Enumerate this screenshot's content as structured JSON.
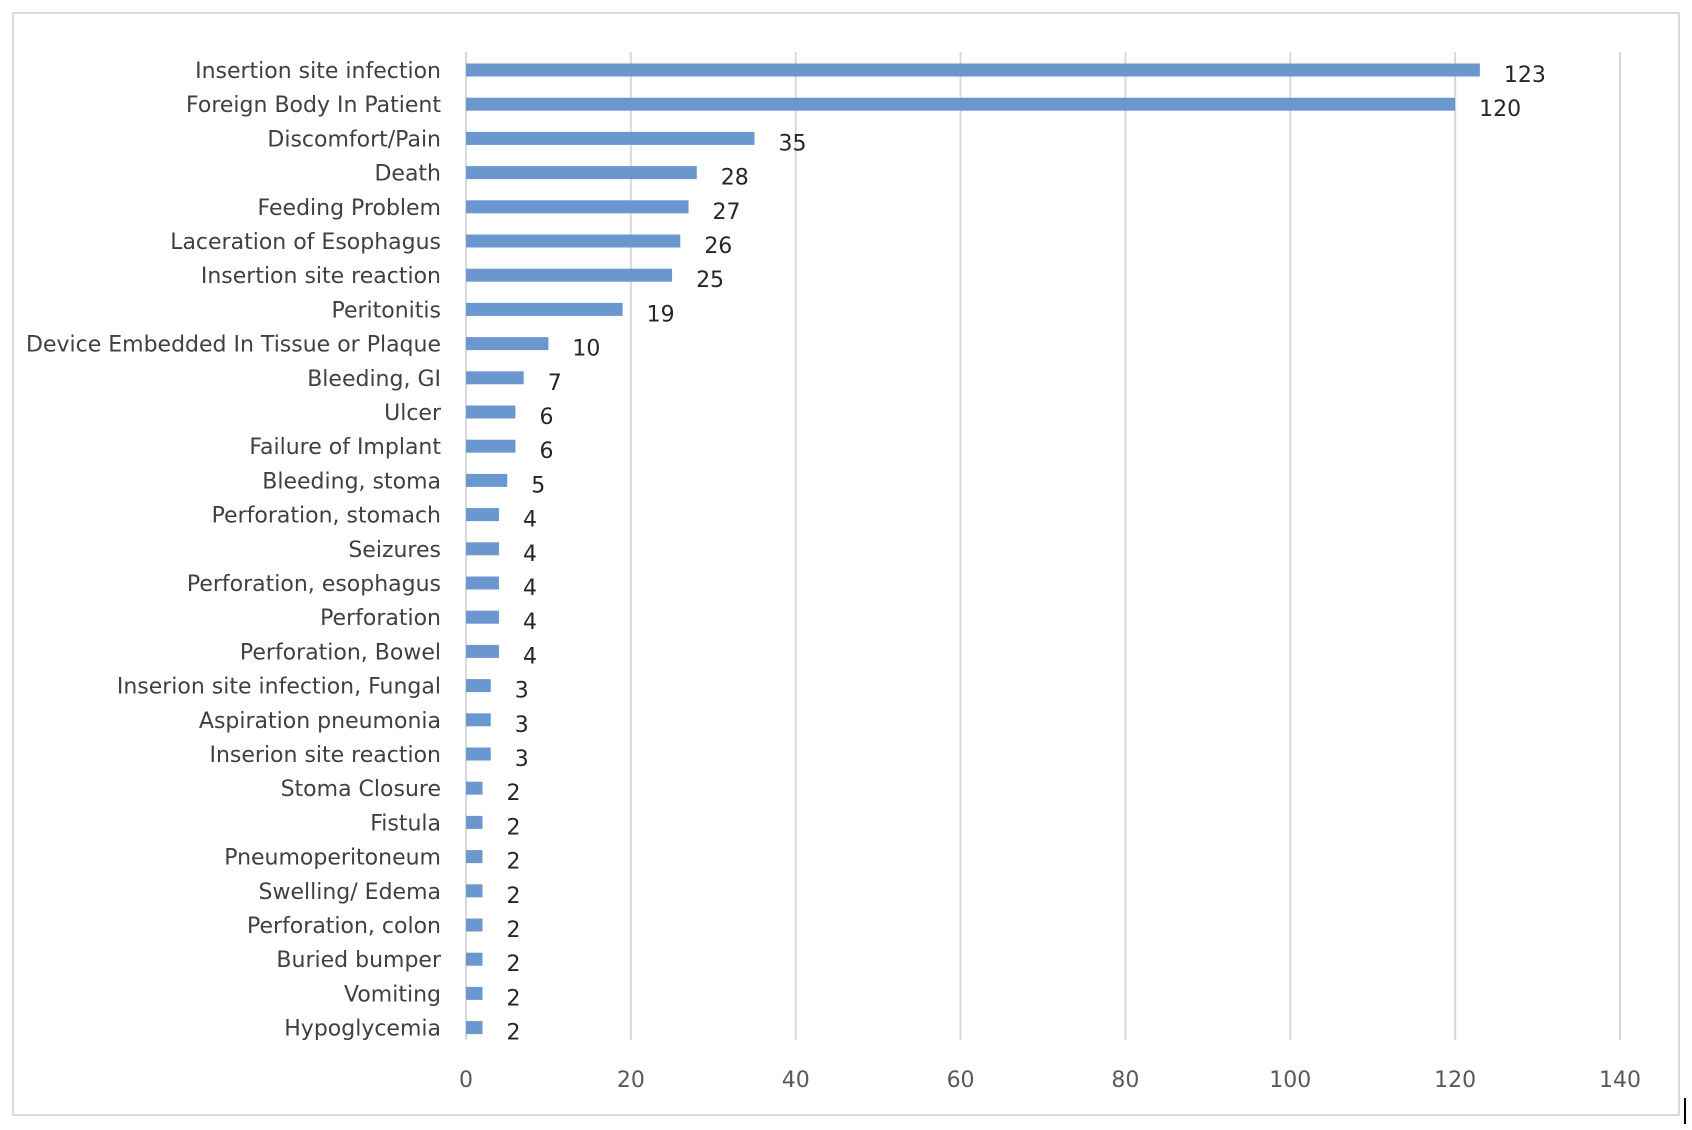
{
  "chart_data": {
    "type": "bar",
    "orientation": "horizontal",
    "title": "",
    "xlabel": "",
    "ylabel": "",
    "categories": [
      "Insertion site infection",
      "Foreign Body In Patient",
      "Discomfort/Pain",
      "Death",
      "Feeding Problem",
      "Laceration of Esophagus",
      "Insertion site reaction",
      "Peritonitis",
      "Device Embedded In Tissue or Plaque",
      "Bleeding, GI",
      "Ulcer",
      "Failure of Implant",
      "Bleeding, stoma",
      "Perforation, stomach",
      "Seizures",
      "Perforation, esophagus",
      "Perforation",
      "Perforation, Bowel",
      "Inserion site infection, Fungal",
      "Aspiration pneumonia",
      "Inserion site reaction",
      "Stoma Closure",
      "Fistula",
      "Pneumoperitoneum",
      "Swelling/ Edema",
      "Perforation, colon",
      "Buried bumper",
      "Vomiting",
      "Hypoglycemia"
    ],
    "values": [
      123,
      120,
      35,
      28,
      27,
      26,
      25,
      19,
      10,
      7,
      6,
      6,
      5,
      4,
      4,
      4,
      4,
      4,
      3,
      3,
      3,
      2,
      2,
      2,
      2,
      2,
      2,
      2,
      2
    ],
    "xlim": [
      0,
      140
    ],
    "xticks": [
      0,
      20,
      40,
      60,
      80,
      100,
      120,
      140
    ],
    "grid": "vertical",
    "data_labels": true,
    "legend": "none",
    "bar_color": "#6b97cf",
    "grid_color": "#d9d9d9"
  }
}
